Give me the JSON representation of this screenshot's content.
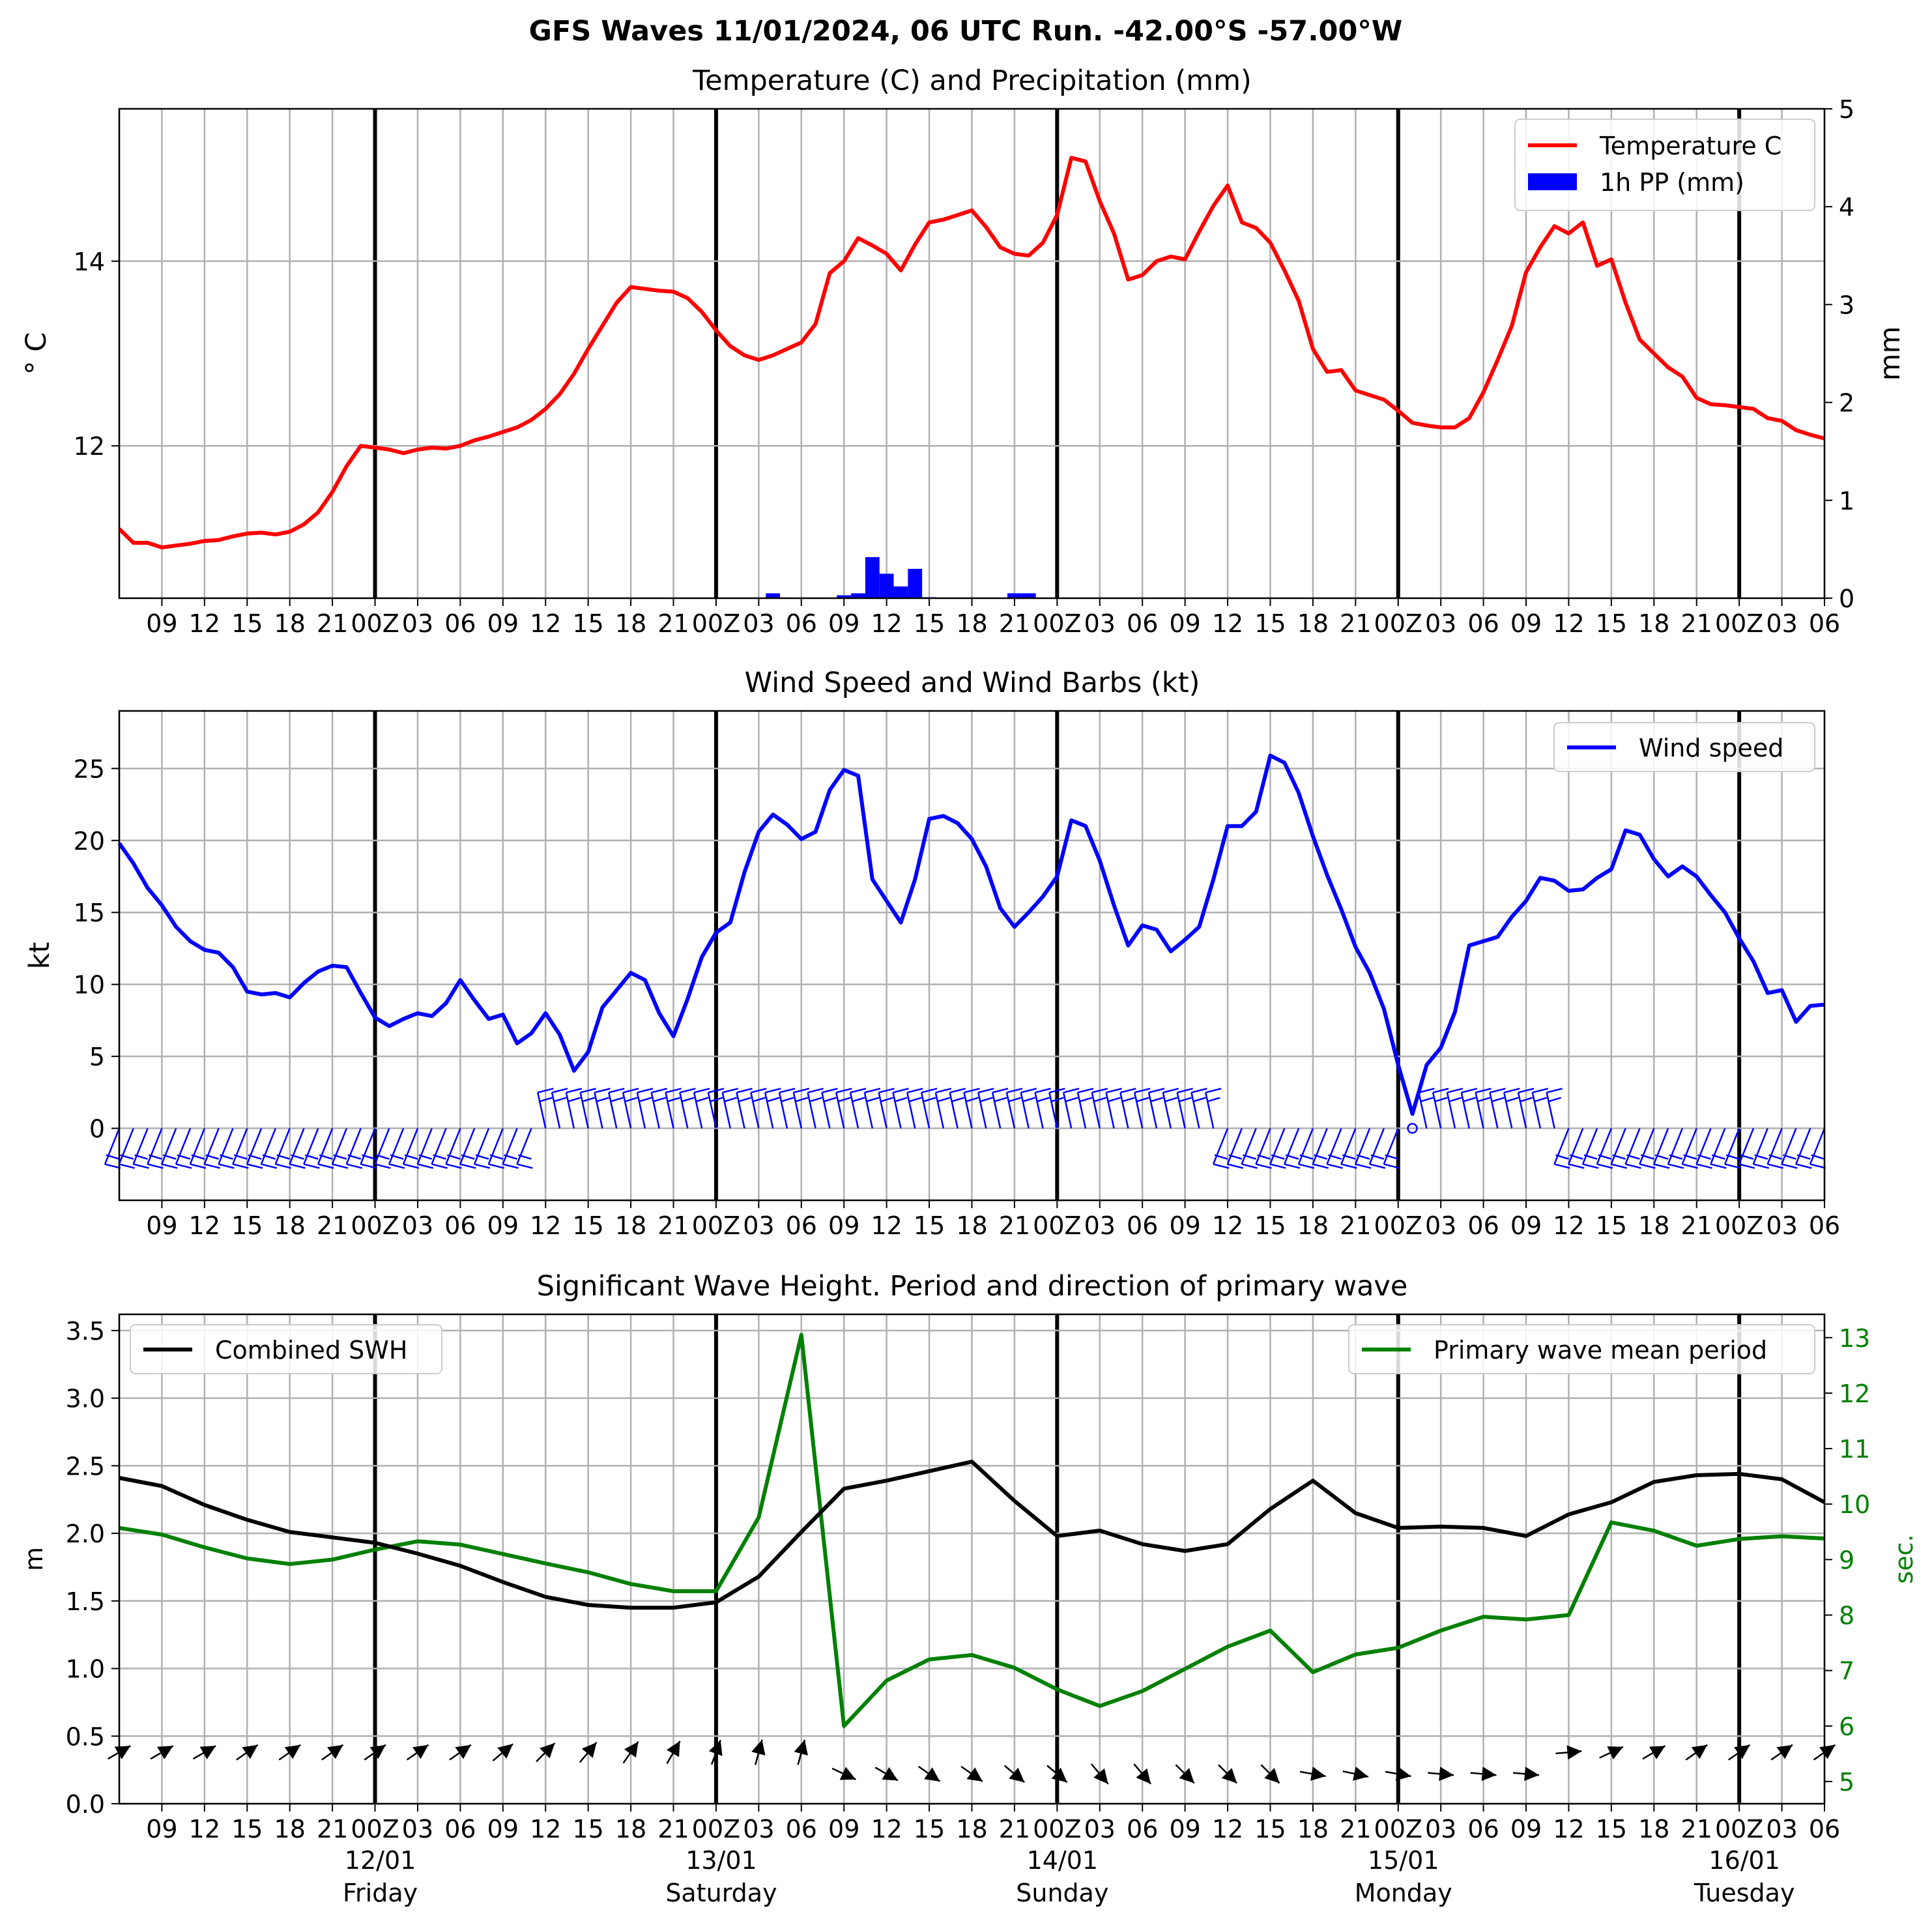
{
  "figure": {
    "title": "GFS Waves 11/01/2024, 06 UTC Run. -42.00°S -57.00°W",
    "tick_labels": [
      "09",
      "12",
      "15",
      "18",
      "21",
      "00Z",
      "03",
      "06",
      "09",
      "12",
      "15",
      "18",
      "21",
      "00Z",
      "03",
      "06",
      "09",
      "12",
      "15",
      "18",
      "21",
      "00Z",
      "03",
      "06",
      "09",
      "12",
      "15",
      "18",
      "21",
      "00Z",
      "03",
      "06",
      "09",
      "12",
      "15",
      "18",
      "21",
      "00Z",
      "03",
      "06"
    ],
    "day_labels": [
      {
        "date": "12/01",
        "day": "Friday"
      },
      {
        "date": "13/01",
        "day": "Saturday"
      },
      {
        "date": "14/01",
        "day": "Sunday"
      },
      {
        "date": "15/01",
        "day": "Monday"
      },
      {
        "date": "16/01",
        "day": "Tuesday"
      }
    ],
    "x_range": [
      "2024-01-11T06:00Z",
      "2024-01-16T06:00Z"
    ],
    "hour_step": 3,
    "grid": true,
    "colors": {
      "temperature": "#ff0000",
      "precip": "#0000ff",
      "wind": "#0000ff",
      "swh": "#000000",
      "period": "#008000",
      "grid": "#b0b0b0"
    }
  },
  "chart_data": [
    {
      "type": "line",
      "title": "Temperature (C) and Precipitation (mm)",
      "ylabel": "° C",
      "ylabel_right": "mm",
      "ylim": [
        10.35,
        15.65
      ],
      "ylim_right": [
        0,
        5
      ],
      "yticks": [
        "12",
        "14"
      ],
      "yticks_right": [
        "0",
        "1",
        "2",
        "3",
        "4",
        "5"
      ],
      "legend_position": "upper right",
      "legend": [
        "Temperature C",
        "1h PP (mm)"
      ],
      "series": [
        {
          "name": "Temperature C",
          "step_hours": 1,
          "start": "2024-01-11T06:00Z",
          "values": [
            11.1,
            10.95,
            10.95,
            10.9,
            10.92,
            10.94,
            10.97,
            10.98,
            11.02,
            11.05,
            11.06,
            11.04,
            11.07,
            11.15,
            11.28,
            11.5,
            11.78,
            12.0,
            11.98,
            11.96,
            11.92,
            11.96,
            11.98,
            11.97,
            12.0,
            12.06,
            12.1,
            12.15,
            12.2,
            12.28,
            12.4,
            12.56,
            12.78,
            13.05,
            13.3,
            13.55,
            13.72,
            13.7,
            13.68,
            13.67,
            13.6,
            13.45,
            13.25,
            13.08,
            12.98,
            12.93,
            12.98,
            13.05,
            13.12,
            13.32,
            13.87,
            14.0,
            14.25,
            14.17,
            14.08,
            13.9,
            14.18,
            14.42,
            14.45,
            14.5,
            14.55,
            14.37,
            14.15,
            14.08,
            14.06,
            14.2,
            14.5,
            15.12,
            15.08,
            14.65,
            14.3,
            13.8,
            13.85,
            14.0,
            14.05,
            14.02,
            14.32,
            14.6,
            14.82,
            14.42,
            14.36,
            14.2,
            13.9,
            13.57,
            13.05,
            12.8,
            12.82,
            12.6,
            12.55,
            12.5,
            12.38,
            12.25,
            12.22,
            12.2,
            12.2,
            12.3,
            12.58,
            12.93,
            13.3,
            13.88,
            14.15,
            14.38,
            14.3,
            14.42,
            13.95,
            14.02,
            13.55,
            13.15,
            13.0,
            12.85,
            12.75,
            12.52,
            12.45,
            12.44,
            12.42,
            12.4,
            12.3,
            12.27,
            12.17,
            12.12,
            12.08
          ]
        },
        {
          "name": "1h PP (mm)",
          "type": "bar",
          "x_hours_from_start": [
            46,
            51,
            52,
            53,
            54,
            55,
            56,
            57,
            63,
            64
          ],
          "values": [
            0.05,
            0.03,
            0.05,
            0.42,
            0.25,
            0.12,
            0.3,
            0.01,
            0.05,
            0.05
          ]
        }
      ]
    },
    {
      "type": "line",
      "title": "Wind Speed and Wind Barbs (kt)",
      "ylabel": "kt",
      "ylim": [
        -5,
        29
      ],
      "yticks": [
        "0",
        "5",
        "10",
        "15",
        "20",
        "25"
      ],
      "legend_position": "upper right",
      "legend": [
        "Wind speed"
      ],
      "series": [
        {
          "name": "Wind speed",
          "step_hours": 1,
          "start": "2024-01-11T06:00Z",
          "values": [
            19.8,
            18.4,
            16.7,
            15.5,
            14.0,
            13.0,
            12.4,
            12.2,
            11.2,
            9.5,
            9.3,
            9.4,
            9.1,
            10.1,
            10.9,
            11.3,
            11.2,
            9.4,
            7.7,
            7.1,
            7.6,
            8.0,
            7.8,
            8.7,
            10.3,
            8.9,
            7.6,
            7.9,
            5.9,
            6.6,
            8.0,
            6.5,
            4.0,
            5.3,
            8.4,
            9.6,
            10.8,
            10.3,
            8.0,
            6.4,
            9.0,
            11.9,
            13.6,
            14.3,
            17.8,
            20.6,
            21.8,
            21.1,
            20.1,
            20.6,
            23.5,
            24.9,
            24.5,
            17.3,
            15.8,
            14.3,
            17.3,
            21.5,
            21.7,
            21.2,
            20.1,
            18.2,
            15.3,
            14.0,
            15.0,
            16.1,
            17.5,
            21.4,
            21.0,
            18.6,
            15.5,
            12.7,
            14.1,
            13.8,
            12.3,
            13.1,
            14.0,
            17.3,
            21.0,
            21.0,
            22.0,
            25.9,
            25.4,
            23.3,
            20.3,
            17.6,
            15.2,
            12.6,
            10.8,
            8.3,
            4.4,
            1.0,
            4.4,
            5.6,
            8.1,
            12.7,
            13.0,
            13.3,
            14.7,
            15.8,
            17.4,
            17.2,
            16.5,
            16.6,
            17.4,
            18.0,
            20.7,
            20.4,
            18.7,
            17.5,
            18.2,
            17.5,
            16.2,
            15.0,
            13.2,
            11.6,
            9.4,
            9.6,
            7.4,
            8.5,
            8.6
          ]
        }
      ],
      "wind_barbs": {
        "step_hours": 1,
        "start": "2024-01-11T06:00Z",
        "levels": [
          "low",
          "low",
          "low",
          "low",
          "low",
          "low",
          "low",
          "low",
          "low",
          "low",
          "low",
          "low",
          "low",
          "low",
          "low",
          "low",
          "low",
          "low",
          "low",
          "low",
          "low",
          "low",
          "low",
          "low",
          "low",
          "low",
          "low",
          "low",
          "low",
          "low",
          "high",
          "high",
          "high",
          "high",
          "high",
          "high",
          "high",
          "high",
          "high",
          "high",
          "high",
          "high",
          "high",
          "high",
          "high",
          "high",
          "high",
          "high",
          "high",
          "high",
          "high",
          "high",
          "high",
          "high",
          "high",
          "high",
          "high",
          "high",
          "high",
          "high",
          "high",
          "high",
          "high",
          "high",
          "high",
          "high",
          "high",
          "high",
          "high",
          "high",
          "high",
          "high",
          "high",
          "high",
          "high",
          "high",
          "high",
          "high",
          "low",
          "low",
          "low",
          "low",
          "low",
          "low",
          "low",
          "low",
          "low",
          "low",
          "low",
          "low",
          "low",
          "calm",
          "high",
          "high",
          "high",
          "high",
          "high",
          "high",
          "high",
          "high",
          "high",
          "high",
          "low",
          "low",
          "low",
          "low",
          "low",
          "low",
          "low",
          "low",
          "low",
          "low",
          "low",
          "low",
          "low",
          "low",
          "low",
          "low",
          "low",
          "low",
          "low"
        ]
      }
    },
    {
      "type": "line",
      "title": "Significant Wave Height. Period and direction of primary wave",
      "ylabel": "m",
      "ylabel_right": "sec.",
      "ylim": [
        0,
        3.62
      ],
      "ylim_right": [
        4.6,
        13.42
      ],
      "yticks": [
        "0.0",
        "0.5",
        "1.0",
        "1.5",
        "2.0",
        "2.5",
        "3.0",
        "3.5"
      ],
      "yticks_right": [
        "5",
        "6",
        "7",
        "8",
        "9",
        "10",
        "11",
        "12",
        "13"
      ],
      "legend_positions": [
        "upper left",
        "upper right"
      ],
      "legend": [
        "Combined SWH",
        "Primary wave mean period"
      ],
      "series": [
        {
          "name": "Combined SWH",
          "step_hours": 3,
          "start": "2024-01-11T06:00Z",
          "values": [
            2.41,
            2.35,
            2.21,
            2.1,
            2.01,
            1.97,
            1.93,
            1.85,
            1.76,
            1.64,
            1.53,
            1.47,
            1.45,
            1.45,
            1.49,
            1.68,
            2.01,
            2.33,
            2.39,
            2.46,
            2.53,
            2.24,
            1.98,
            2.02,
            1.92,
            1.87,
            1.92,
            2.18,
            2.39,
            2.15,
            2.04,
            2.05,
            2.04,
            1.98,
            2.14,
            2.23,
            2.38,
            2.43,
            2.44,
            2.4,
            2.23
          ]
        },
        {
          "name": "Primary wave mean period",
          "step_hours": 3,
          "start": "2024-01-11T06:00Z",
          "values": [
            9.57,
            9.45,
            9.22,
            9.02,
            8.92,
            9.0,
            9.18,
            9.33,
            9.27,
            9.1,
            8.93,
            8.77,
            8.56,
            8.43,
            8.43,
            9.76,
            13.05,
            6.0,
            6.82,
            7.2,
            7.28,
            7.05,
            6.66,
            6.36,
            6.63,
            7.03,
            7.43,
            7.72,
            6.97,
            7.29,
            7.41,
            7.72,
            7.97,
            7.92,
            8.0,
            9.67,
            9.52,
            9.25,
            9.37,
            9.42,
            9.38
          ]
        }
      ],
      "wave_direction_arrows": {
        "step_hours": 3,
        "start": "2024-01-11T06:00Z",
        "angles_deg": [
          30,
          30,
          30,
          35,
          35,
          35,
          35,
          35,
          35,
          40,
          45,
          50,
          55,
          60,
          70,
          75,
          75,
          -25,
          -30,
          -35,
          -35,
          -40,
          -40,
          -50,
          -50,
          -45,
          -45,
          -45,
          -10,
          -12,
          -10,
          -5,
          -5,
          -5,
          5,
          25,
          30,
          35,
          35,
          35,
          35
        ]
      }
    }
  ]
}
